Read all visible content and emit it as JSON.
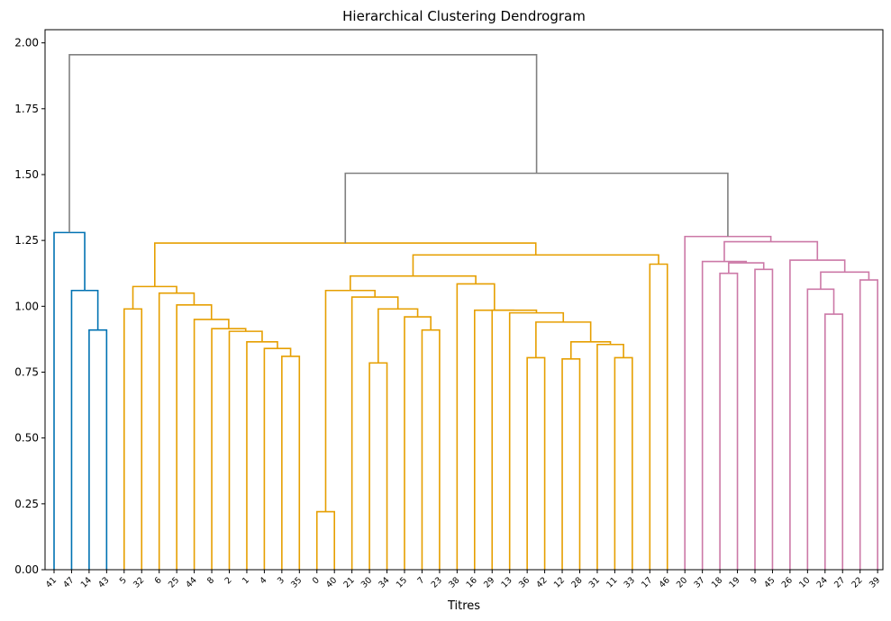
{
  "chart_data": {
    "type": "dendrogram",
    "title": "Hierarchical Clustering Dendrogram",
    "xlabel": "Titres",
    "ylabel": "",
    "ylim": [
      0,
      2.05
    ],
    "yticks": [
      "0.00",
      "0.25",
      "0.50",
      "0.75",
      "1.00",
      "1.25",
      "1.50",
      "1.75",
      "2.00"
    ],
    "ytick_values": [
      0,
      0.25,
      0.5,
      0.75,
      1.0,
      1.25,
      1.5,
      1.75,
      2.0
    ],
    "grid": false,
    "leaf_order": [
      "41",
      "47",
      "14",
      "43",
      "5",
      "32",
      "6",
      "25",
      "44",
      "8",
      "2",
      "1",
      "4",
      "3",
      "35",
      "0",
      "40",
      "21",
      "30",
      "34",
      "15",
      "7",
      "23",
      "38",
      "16",
      "29",
      "13",
      "36",
      "42",
      "12",
      "28",
      "31",
      "11",
      "33",
      "17",
      "46",
      "20",
      "37",
      "18",
      "19",
      "9",
      "45",
      "26",
      "10",
      "24",
      "27",
      "22",
      "39"
    ],
    "colors": {
      "root": "#808080",
      "cluster_1": "#0072b2",
      "cluster_2": "#e69f00",
      "cluster_3": "#cc79a7"
    },
    "links": [
      {
        "c": "cluster_1",
        "left": "14",
        "right": "43",
        "height": 0.91
      },
      {
        "c": "cluster_1",
        "left": "47",
        "right": "m1",
        "height": 1.06
      },
      {
        "c": "cluster_1",
        "left": "41",
        "right": "m2",
        "height": 1.28
      },
      {
        "c": "cluster_2",
        "left": "5",
        "right": "32",
        "height": 0.99
      },
      {
        "c": "cluster_2",
        "left": "3",
        "right": "35",
        "height": 0.81
      },
      {
        "c": "cluster_2",
        "left": "4",
        "right": "m4",
        "height": 0.84
      },
      {
        "c": "cluster_2",
        "left": "1",
        "right": "m5",
        "height": 0.865
      },
      {
        "c": "cluster_2",
        "left": "2",
        "right": "m6",
        "height": 0.905
      },
      {
        "c": "cluster_2",
        "left": "8",
        "right": "m7",
        "height": 0.915
      },
      {
        "c": "cluster_2",
        "left": "44",
        "right": "m8",
        "height": 0.95
      },
      {
        "c": "cluster_2",
        "left": "25",
        "right": "m9",
        "height": 1.005
      },
      {
        "c": "cluster_2",
        "left": "6",
        "right": "m10",
        "height": 1.05
      },
      {
        "c": "cluster_2",
        "left": "m3",
        "right": "m11",
        "height": 1.075
      },
      {
        "c": "cluster_2",
        "left": "0",
        "right": "40",
        "height": 0.22
      },
      {
        "c": "cluster_2",
        "left": "30",
        "right": "34",
        "height": 0.785
      },
      {
        "c": "cluster_2",
        "left": "7",
        "right": "23",
        "height": 0.91
      },
      {
        "c": "cluster_2",
        "left": "15",
        "right": "m15",
        "height": 0.96
      },
      {
        "c": "cluster_2",
        "left": "m14",
        "right": "m16",
        "height": 0.99
      },
      {
        "c": "cluster_2",
        "left": "21",
        "right": "m17",
        "height": 1.035
      },
      {
        "c": "cluster_2",
        "left": "m13",
        "right": "m18",
        "height": 1.06
      },
      {
        "c": "cluster_2",
        "left": "36",
        "right": "42",
        "height": 0.805
      },
      {
        "c": "cluster_2",
        "left": "12",
        "right": "28",
        "height": 0.8
      },
      {
        "c": "cluster_2",
        "left": "11",
        "right": "33",
        "height": 0.805
      },
      {
        "c": "cluster_2",
        "left": "m22",
        "right": "m23",
        "height": 0.9
      },
      {
        "c": "cluster_2",
        "left": "31",
        "right": "m22a",
        "height": 0.855
      },
      {
        "c": "cluster_2",
        "left": "m21",
        "right": "m24",
        "height": 0.865
      },
      {
        "c": "cluster_2",
        "left": "m20",
        "right": "m25",
        "height": 0.94
      },
      {
        "c": "cluster_2",
        "left": "13",
        "right": "m26",
        "height": 0.975
      },
      {
        "c": "cluster_2",
        "left": "29",
        "right": "m27",
        "height": 0.985
      },
      {
        "c": "cluster_2",
        "left": "16",
        "right": "m28",
        "height": 0.985
      },
      {
        "c": "cluster_2",
        "left": "38",
        "right": "m29",
        "height": 1.085
      },
      {
        "c": "cluster_2",
        "left": "m19",
        "right": "m30",
        "height": 1.115
      },
      {
        "c": "cluster_2",
        "left": "17",
        "right": "46",
        "height": 1.16
      },
      {
        "c": "cluster_2",
        "left": "m31",
        "right": "m32",
        "height": 1.195
      },
      {
        "c": "cluster_2",
        "left": "m12",
        "right": "m33",
        "height": 1.24
      },
      {
        "c": "cluster_3",
        "left": "18",
        "right": "19",
        "height": 1.125
      },
      {
        "c": "cluster_3",
        "left": "9",
        "right": "45",
        "height": 1.14
      },
      {
        "c": "cluster_3",
        "left": "m35",
        "right": "m36",
        "height": 1.165
      },
      {
        "c": "cluster_3",
        "left": "37",
        "right": "m37",
        "height": 1.17
      },
      {
        "c": "cluster_3",
        "left": "24",
        "right": "27",
        "height": 0.97
      },
      {
        "c": "cluster_3",
        "left": "10",
        "right": "m39",
        "height": 1.065
      },
      {
        "c": "cluster_3",
        "left": "22",
        "right": "39",
        "height": 1.1
      },
      {
        "c": "cluster_3",
        "left": "m40",
        "right": "m41",
        "height": 1.13
      },
      {
        "c": "cluster_3",
        "left": "26",
        "right": "m42",
        "height": 1.175
      },
      {
        "c": "cluster_3",
        "left": "m38",
        "right": "m43",
        "height": 1.245
      },
      {
        "c": "cluster_3",
        "left": "20",
        "right": "m44",
        "height": 1.265
      },
      {
        "c": "root",
        "left": "m34",
        "right": "m45",
        "height": 1.505
      },
      {
        "c": "root",
        "left": "m3c1",
        "right": "m46",
        "height": 1.955
      }
    ]
  }
}
